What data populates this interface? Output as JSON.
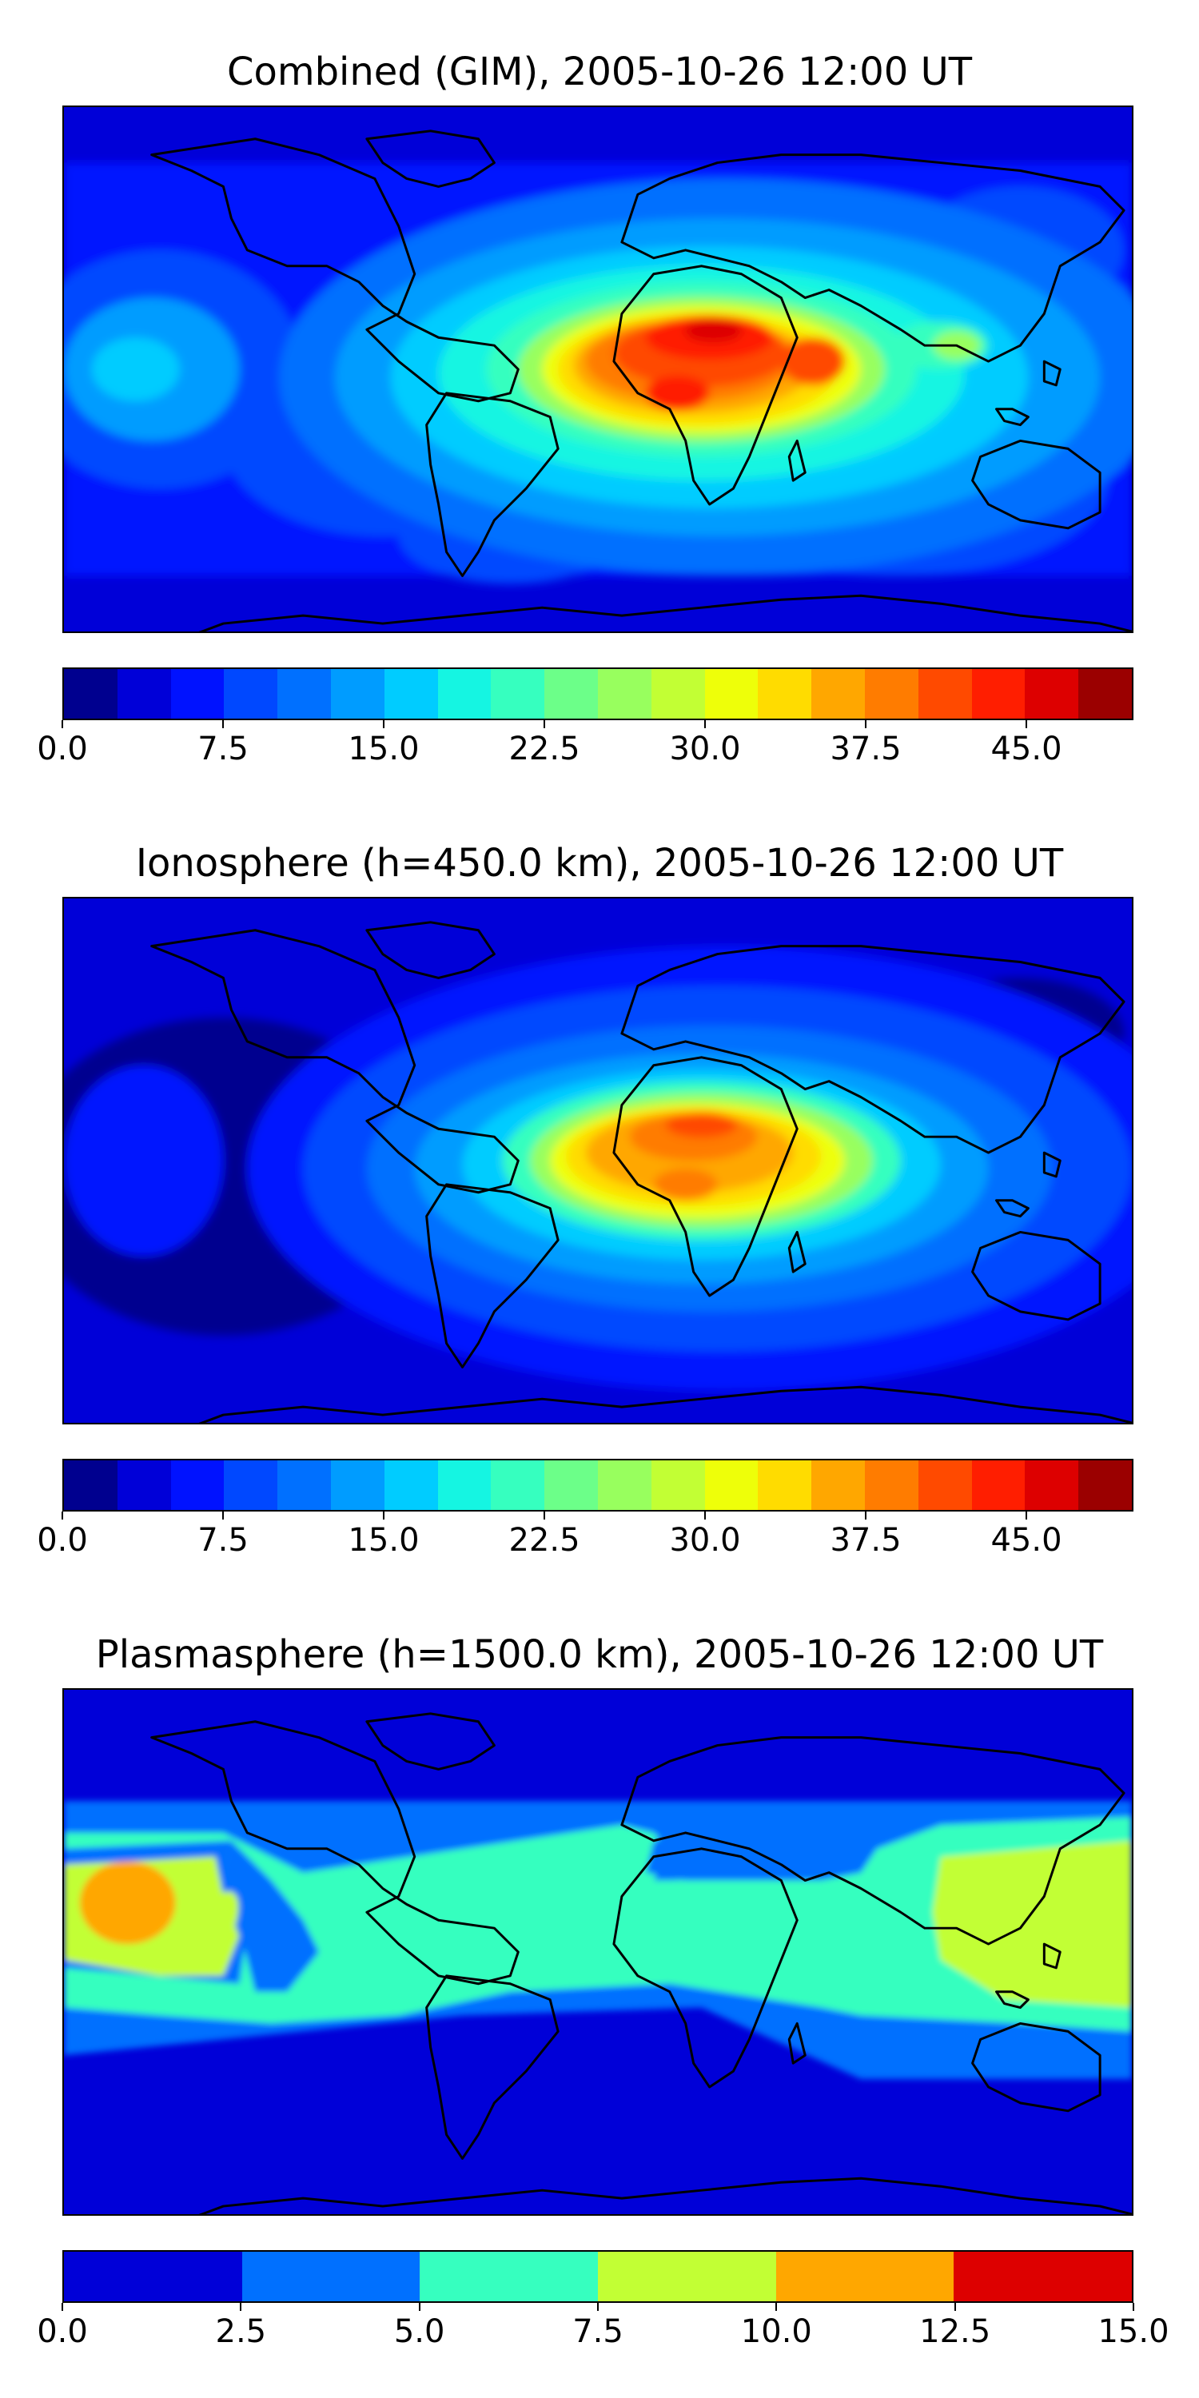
{
  "panels": [
    {
      "title": "Combined (GIM), 2005-10-26 12:00 UT",
      "colorbar": {
        "min": 0,
        "max": 50,
        "colors": [
          "#00008f",
          "#0000d8",
          "#0012ff",
          "#0048ff",
          "#0070ff",
          "#009cff",
          "#00ccff",
          "#15f5e2",
          "#36ffbf",
          "#6cff89",
          "#98ff5e",
          "#c2ff34",
          "#eeff09",
          "#ffdc00",
          "#ffa700",
          "#ff7c00",
          "#ff4a00",
          "#ff1e00",
          "#dd0000",
          "#9b0000"
        ],
        "ticks": [
          "0.0",
          "7.5",
          "15.0",
          "22.5",
          "30.0",
          "37.5",
          "45.0"
        ],
        "tick_values": [
          0,
          7.5,
          15,
          22.5,
          30,
          37.5,
          45
        ]
      }
    },
    {
      "title": "Ionosphere  (h=450.0 km), 2005-10-26 12:00 UT",
      "colorbar": {
        "min": 0,
        "max": 50,
        "colors": [
          "#00008f",
          "#0000d8",
          "#0012ff",
          "#0048ff",
          "#0070ff",
          "#009cff",
          "#00ccff",
          "#15f5e2",
          "#36ffbf",
          "#6cff89",
          "#98ff5e",
          "#c2ff34",
          "#eeff09",
          "#ffdc00",
          "#ffa700",
          "#ff7c00",
          "#ff4a00",
          "#ff1e00",
          "#dd0000",
          "#9b0000"
        ],
        "ticks": [
          "0.0",
          "7.5",
          "15.0",
          "22.5",
          "30.0",
          "37.5",
          "45.0"
        ],
        "tick_values": [
          0,
          7.5,
          15,
          22.5,
          30,
          37.5,
          45
        ]
      }
    },
    {
      "title": "Plasmasphere (h=1500.0 km), 2005-10-26 12:00 UT",
      "colorbar": {
        "min": 0,
        "max": 15,
        "colors": [
          "#0000d8",
          "#0070ff",
          "#36ffbf",
          "#c2ff34",
          "#ffa700",
          "#dd0000"
        ],
        "ticks": [
          "0.0",
          "2.5",
          "5.0",
          "7.5",
          "10.0",
          "12.5",
          "15.0"
        ],
        "tick_values": [
          0,
          2.5,
          5,
          7.5,
          10,
          12.5,
          15
        ]
      }
    }
  ]
}
